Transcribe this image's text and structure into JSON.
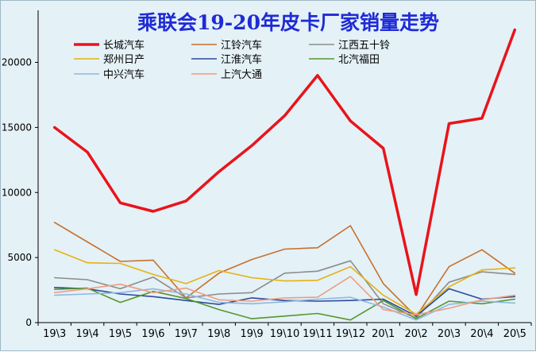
{
  "chart_data": {
    "type": "line",
    "title": "乘联会19-20年皮卡厂家销量走势",
    "xlabel": "",
    "ylabel": "",
    "ylim": [
      0,
      24000
    ],
    "yticks": [
      0,
      5000,
      10000,
      15000,
      20000
    ],
    "grid": false,
    "legend_position": "top-left",
    "categories": [
      "19\\3",
      "19\\4",
      "19\\5",
      "19\\6",
      "19\\7",
      "19\\8",
      "19\\9",
      "19\\10",
      "19\\11",
      "19\\12",
      "20\\1",
      "20\\2",
      "20\\3",
      "20\\4",
      "20\\5"
    ],
    "series": [
      {
        "name": "长城汽车",
        "color": "#e8141a",
        "width": 3.5,
        "values": [
          15000,
          13100,
          9200,
          8550,
          9350,
          11600,
          13600,
          15900,
          19000,
          15500,
          13400,
          2150,
          15300,
          15700,
          22500
        ]
      },
      {
        "name": "江铃汽车",
        "color": "#c8702c",
        "width": 1.6,
        "values": [
          7700,
          6200,
          4700,
          4800,
          1900,
          3800,
          4850,
          5650,
          5750,
          7450,
          3000,
          450,
          4300,
          5600,
          3800
        ]
      },
      {
        "name": "江西五十铃",
        "color": "#8c8c8c",
        "width": 1.6,
        "values": [
          3450,
          3300,
          2600,
          3500,
          1900,
          2200,
          2300,
          3800,
          3950,
          4750,
          1450,
          350,
          3100,
          3900,
          3700
        ]
      },
      {
        "name": "郑州日产",
        "color": "#e6b212",
        "width": 1.6,
        "values": [
          5600,
          4600,
          4550,
          3700,
          3000,
          4000,
          3450,
          3200,
          3250,
          4300,
          2100,
          650,
          2750,
          4050,
          4200
        ]
      },
      {
        "name": "江淮汽车",
        "color": "#2c4a9a",
        "width": 1.6,
        "values": [
          2700,
          2600,
          2200,
          2000,
          1700,
          1400,
          1900,
          1700,
          1650,
          1700,
          1800,
          500,
          2600,
          1800,
          2000
        ]
      },
      {
        "name": "北汽福田",
        "color": "#56962e",
        "width": 1.6,
        "values": [
          2550,
          2650,
          1550,
          2400,
          1850,
          1000,
          300,
          500,
          700,
          200,
          1700,
          300,
          1650,
          1450,
          1800
        ]
      },
      {
        "name": "中兴汽车",
        "color": "#8fb7e0",
        "width": 1.6,
        "values": [
          2100,
          2200,
          2300,
          2600,
          2200,
          1550,
          1450,
          1600,
          1800,
          1950,
          1200,
          200,
          1400,
          1650,
          1500
        ]
      },
      {
        "name": "上汽大通",
        "color": "#ef9d7f",
        "width": 1.6,
        "values": [
          2300,
          2600,
          2950,
          2300,
          2650,
          1750,
          1650,
          1900,
          1950,
          3550,
          1000,
          600,
          1100,
          1750,
          2100
        ]
      }
    ]
  }
}
